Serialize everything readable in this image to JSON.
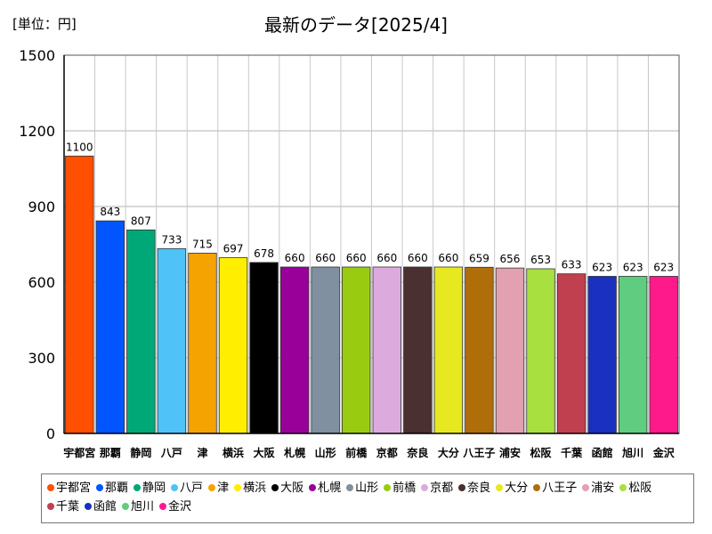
{
  "unit_label": "[単位：円]",
  "chart_data": {
    "type": "bar",
    "title": "最新のデータ[2025/4]",
    "xlabel": "",
    "ylabel": "",
    "ylim": [
      0,
      1500
    ],
    "yticks": [
      0,
      300,
      600,
      900,
      1200,
      1500
    ],
    "grid": true,
    "legend_position": "bottom",
    "categories": [
      "宇都宮",
      "那覇",
      "静岡",
      "八戸",
      "津",
      "横浜",
      "大阪",
      "札幌",
      "山形",
      "前橋",
      "京都",
      "奈良",
      "大分",
      "八王子",
      "浦安",
      "松阪",
      "千葉",
      "函館",
      "旭川",
      "金沢"
    ],
    "values": [
      1100,
      843,
      807,
      733,
      715,
      697,
      678,
      660,
      660,
      660,
      660,
      660,
      660,
      659,
      656,
      653,
      633,
      623,
      623,
      623
    ],
    "colors": [
      "#ff4f00",
      "#0055ff",
      "#00a878",
      "#4fc3f7",
      "#f5a300",
      "#ffee00",
      "#000000",
      "#990099",
      "#8090a0",
      "#99cc11",
      "#ddaadd",
      "#4a3030",
      "#e8e820",
      "#b06e0a",
      "#e2a0b0",
      "#a8e040",
      "#c04050",
      "#1a30c0",
      "#60cc80",
      "#ff1a8c"
    ]
  }
}
